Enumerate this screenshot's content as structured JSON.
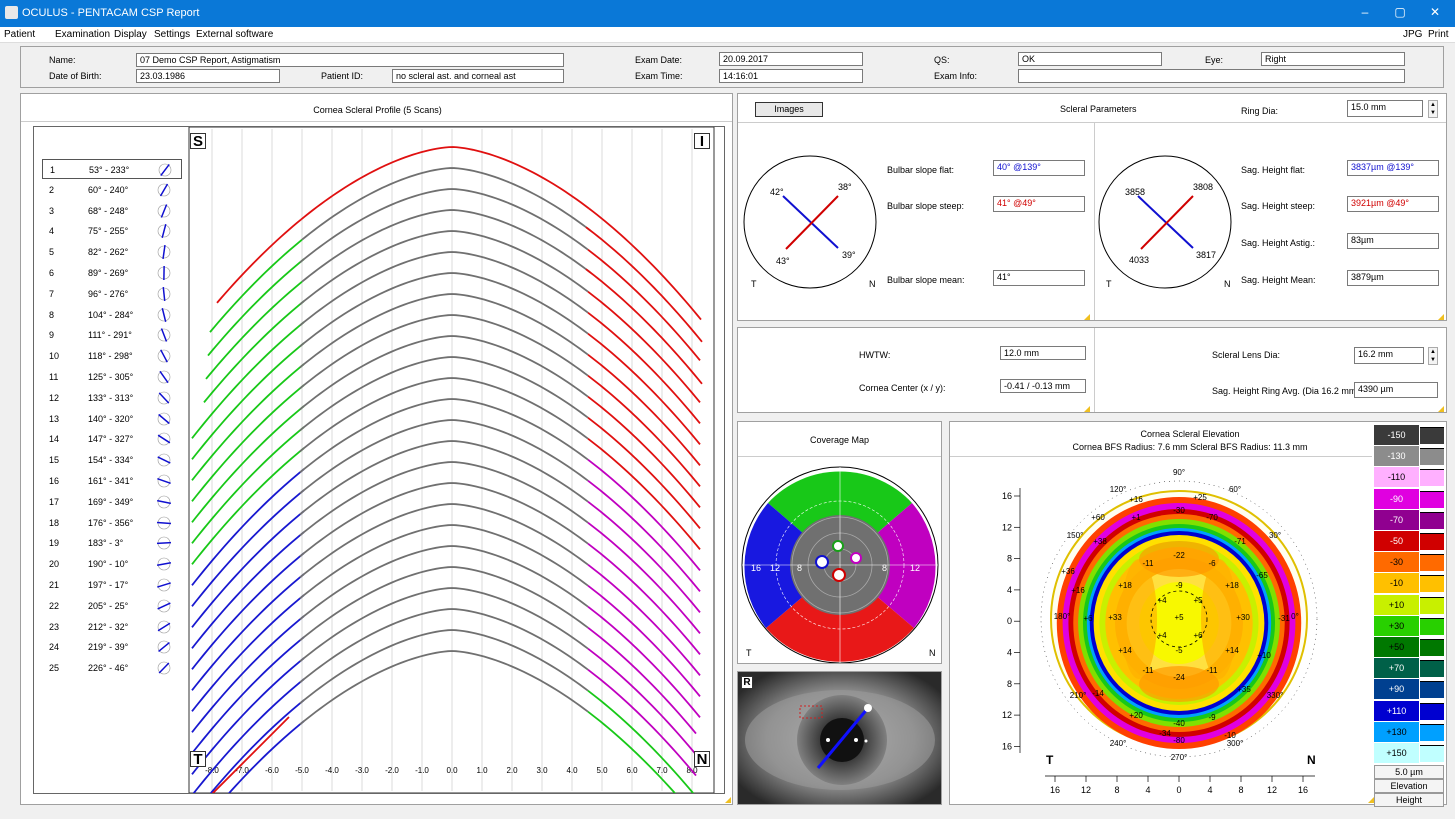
{
  "window": {
    "title": "OCULUS - PENTACAM  CSP Report",
    "min": "–",
    "restore": "▢",
    "close": "✕"
  },
  "menu": {
    "items": [
      "Patient",
      "Examination",
      "Display",
      "Settings",
      "External software"
    ],
    "right": [
      "JPG",
      "Print"
    ]
  },
  "patient": {
    "name_label": "Name:",
    "name": "07 Demo CSP Report, Astigmatism",
    "dob_label": "Date of Birth:",
    "dob": "23.03.1986",
    "pid_label": "Patient ID:",
    "pid": "no scleral ast. and corneal ast",
    "exam_date_label": "Exam Date:",
    "exam_date": "20.09.2017",
    "exam_time_label": "Exam Time:",
    "exam_time": "14:16:01",
    "qs_label": "QS:",
    "qs": "OK",
    "exam_info_label": "Exam Info:",
    "exam_info": "",
    "eye_label": "Eye:",
    "eye": "Right"
  },
  "profile": {
    "title": "Cornea Scleral Profile (5 Scans)",
    "corner_s": "S",
    "corner_i": "I",
    "corner_t": "T",
    "corner_n": "N",
    "scans": [
      {
        "n": "1",
        "a": "53° - 233°"
      },
      {
        "n": "2",
        "a": "60° - 240°"
      },
      {
        "n": "3",
        "a": "68° - 248°"
      },
      {
        "n": "4",
        "a": "75° - 255°"
      },
      {
        "n": "5",
        "a": "82° - 262°"
      },
      {
        "n": "6",
        "a": "89° - 269°"
      },
      {
        "n": "7",
        "a": "96° - 276°"
      },
      {
        "n": "8",
        "a": "104° - 284°"
      },
      {
        "n": "9",
        "a": "111° - 291°"
      },
      {
        "n": "10",
        "a": "118° - 298°"
      },
      {
        "n": "11",
        "a": "125° - 305°"
      },
      {
        "n": "12",
        "a": "133° - 313°"
      },
      {
        "n": "13",
        "a": "140° - 320°"
      },
      {
        "n": "14",
        "a": "147° - 327°"
      },
      {
        "n": "15",
        "a": "154° - 334°"
      },
      {
        "n": "16",
        "a": "161° - 341°"
      },
      {
        "n": "17",
        "a": "169° - 349°"
      },
      {
        "n": "18",
        "a": "176° - 356°"
      },
      {
        "n": "19",
        "a": "183° - 3°"
      },
      {
        "n": "20",
        "a": "190° - 10°"
      },
      {
        "n": "21",
        "a": "197° - 17°"
      },
      {
        "n": "22",
        "a": "205° - 25°"
      },
      {
        "n": "23",
        "a": "212° - 32°"
      },
      {
        "n": "24",
        "a": "219° - 39°"
      },
      {
        "n": "25",
        "a": "226° - 46°"
      }
    ],
    "xticks": [
      "-8.0",
      "-7.0",
      "-6.0",
      "-5.0",
      "-4.0",
      "-3.0",
      "-2.0",
      "-1.0",
      "0.0",
      "1.0",
      "2.0",
      "3.0",
      "4.0",
      "5.0",
      "6.0",
      "7.0",
      "8.0"
    ]
  },
  "scleral": {
    "images_btn": "Images",
    "title": "Scleral Parameters",
    "ring_dia_label": "Ring Dia:",
    "ring_dia": "15.0 mm",
    "left_circle": {
      "a1": "42°",
      "a2": "38°",
      "a3": "43°",
      "a4": "39°",
      "t": "T",
      "n": "N"
    },
    "right_circle": {
      "a1": "3858",
      "a2": "3808",
      "a3": "4033",
      "a4": "3817",
      "t": "T",
      "n": "N"
    },
    "bulbar_flat_label": "Bulbar slope flat:",
    "bulbar_flat": "40° @139°",
    "bulbar_steep_label": "Bulbar slope steep:",
    "bulbar_steep": "41° @49°",
    "bulbar_mean_label": "Bulbar slope mean:",
    "bulbar_mean": "41°",
    "sag_flat_label": "Sag. Height flat:",
    "sag_flat": "3837µm @139°",
    "sag_steep_label": "Sag. Height steep:",
    "sag_steep": "3921µm @49°",
    "sag_astig_label": "Sag. Height Astig.:",
    "sag_astig": "83µm",
    "sag_mean_label": "Sag. Height Mean:",
    "sag_mean": "3879µm"
  },
  "lens": {
    "hwtw_label": "HWTW:",
    "hwtw": "12.0 mm",
    "center_label": "Cornea Center (x / y):",
    "center": "-0.41 / -0.13 mm",
    "lens_dia_label": "Scleral Lens Dia:",
    "lens_dia": "16.2 mm",
    "sag_ring_label": "Sag. Height Ring Avg. (Dia 16.2 mm):",
    "sag_ring": "4390 µm"
  },
  "coverage": {
    "title": "Coverage Map",
    "t": "T",
    "n": "N",
    "r16l": "16",
    "r12l": "12",
    "r8l": "8",
    "r8r": "8",
    "r12r": "12"
  },
  "eye_image": {
    "label": "R"
  },
  "elevation": {
    "title": "Cornea Scleral Elevation",
    "subtitle": "Cornea BFS Radius: 7.6 mm    Scleral BFS Radius: 11.3 mm",
    "t": "T",
    "n": "N",
    "yticks": [
      "16",
      "12",
      "8",
      "4",
      "0",
      "4",
      "8",
      "12",
      "16"
    ],
    "xticks": [
      "16",
      "12",
      "8",
      "4",
      "0",
      "4",
      "8",
      "12",
      "16"
    ],
    "angles": [
      "90°",
      "60°",
      "30°",
      "0°",
      "330°",
      "300°",
      "270°",
      "240°",
      "210°",
      "180°",
      "150°",
      "120°"
    ],
    "values": [
      "-22",
      "-11",
      "-6",
      "-9",
      "+18",
      "+18",
      "+4",
      "+5",
      "+33",
      "+5",
      "+30",
      "+4",
      "+6",
      "+14",
      "-5",
      "+14",
      "-11",
      "-24",
      "-11",
      "-30",
      "-70",
      "-71",
      "-65",
      "+60",
      "+1",
      "+38",
      "+16",
      "+36",
      "+16",
      "+10",
      "+35",
      "-9",
      "-10",
      "-14",
      "+20",
      "-40",
      "-34",
      "-80",
      "+25",
      "-31",
      "+6"
    ]
  },
  "legend": {
    "levels": [
      "-150",
      "-130",
      "-110",
      "-90",
      "-70",
      "-50",
      "-30",
      "-10",
      "+10",
      "+30",
      "+50",
      "+70",
      "+90",
      "+110",
      "+130",
      "+150"
    ],
    "colors": [
      "#3a3a3a",
      "#8c8c8c",
      "#ffb0ff",
      "#e000e0",
      "#900090",
      "#d00000",
      "#ff6a00",
      "#ffc000",
      "#c8f000",
      "#28d000",
      "#007800",
      "#006048",
      "#004090",
      "#0000d0",
      "#00a0ff",
      "#c0ffff"
    ],
    "step": "5.0 µm",
    "mode": "Elevation",
    "type": "Height"
  }
}
